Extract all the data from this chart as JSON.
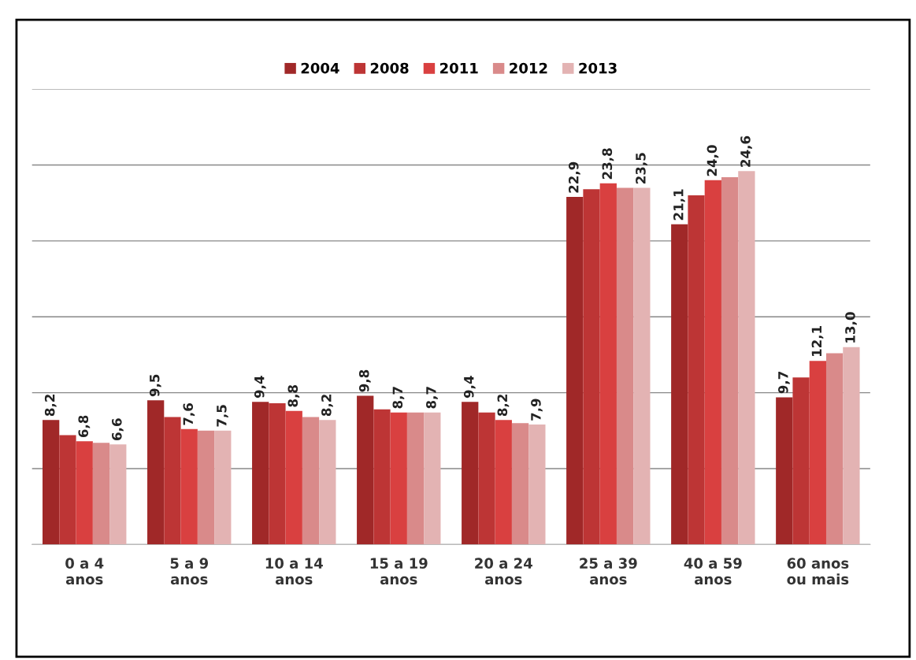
{
  "chart_data": {
    "type": "bar",
    "categories": [
      "0 a 4\nanos",
      "5 a 9\nanos",
      "10 a 14\nanos",
      "15 a 19\nanos",
      "20 a 24\nanos",
      "25 a 39\nanos",
      "40 a 59\nanos",
      "60 anos\nou mais"
    ],
    "series": [
      {
        "name": "2004",
        "color": "#a02828",
        "values": [
          8.2,
          9.5,
          9.4,
          9.8,
          9.4,
          22.9,
          21.1,
          9.7
        ],
        "value_labels": [
          "8,2",
          "9,5",
          "9,4",
          "9,8",
          "9,4",
          "22,9",
          "21,1",
          "9,7"
        ]
      },
      {
        "name": "2008",
        "color": "#bd3535",
        "values": [
          7.2,
          8.4,
          9.3,
          8.9,
          8.7,
          23.4,
          23.0,
          11.0
        ],
        "value_labels": [
          null,
          null,
          null,
          null,
          null,
          null,
          null,
          null
        ]
      },
      {
        "name": "2011",
        "color": "#d94040",
        "values": [
          6.8,
          7.6,
          8.8,
          8.7,
          8.2,
          23.8,
          24.0,
          12.1
        ],
        "value_labels": [
          "6,8",
          "7,6",
          "8,8",
          "8,7",
          "8,2",
          "23,8",
          "24,0",
          "12,1"
        ]
      },
      {
        "name": "2012",
        "color": "#d98a8a",
        "values": [
          6.7,
          7.5,
          8.4,
          8.7,
          8.0,
          23.5,
          24.2,
          12.6
        ],
        "value_labels": [
          null,
          null,
          null,
          null,
          null,
          null,
          null,
          null
        ]
      },
      {
        "name": "2013",
        "color": "#e3b3b3",
        "values": [
          6.6,
          7.5,
          8.2,
          8.7,
          7.9,
          23.5,
          24.6,
          13.0
        ],
        "value_labels": [
          "6,6",
          "7,5",
          "8,2",
          "8,7",
          "7,9",
          "23,5",
          "24,6",
          "13,0"
        ]
      }
    ],
    "ylim": [
      0,
      30
    ],
    "yticks": [
      {
        "value": 0,
        "label": null
      },
      {
        "value": 5,
        "label": null
      },
      {
        "value": 10,
        "label": null
      },
      {
        "value": 15,
        "label": null
      },
      {
        "value": 20,
        "label": null
      },
      {
        "value": 25,
        "label": null
      },
      {
        "value": 30,
        "label": null
      }
    ],
    "grid": "y",
    "legend": "top",
    "tick_labels": "x"
  }
}
